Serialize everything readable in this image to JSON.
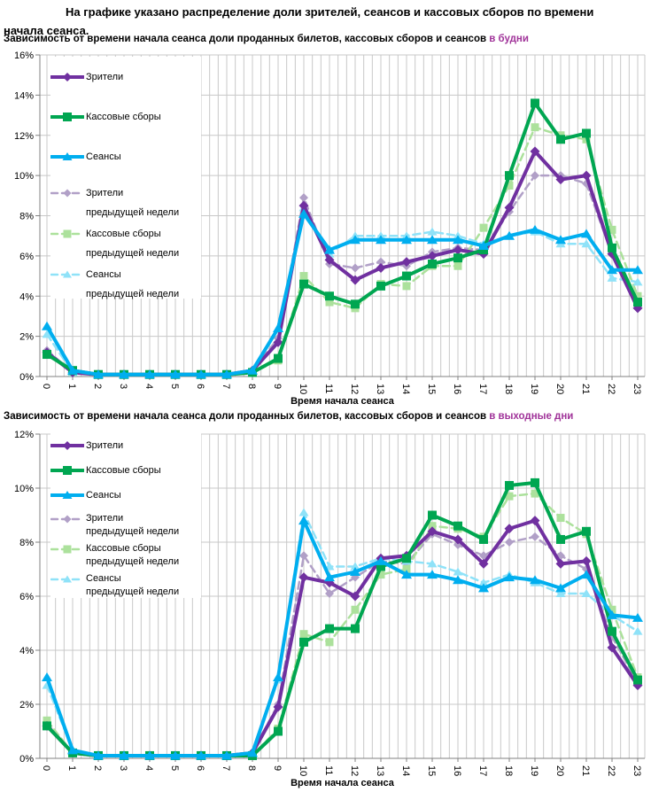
{
  "title": {
    "text": "На графике указано распределение доли зрителей, сеансов и кассовых сборов по времени начала сеанса."
  },
  "chart_data": [
    {
      "type": "line",
      "subtitle": "Зависимость от времени начала сеанса доли проданных билетов, кассовых сборов и сеансов",
      "subtitle_accent": "в будни",
      "accent_color": "#A03399",
      "xlabel": "Время начала сеанса",
      "x_labels": [
        "0",
        "1",
        "2",
        "3",
        "4",
        "5",
        "6",
        "7",
        "8",
        "9",
        "10",
        "11",
        "12",
        "13",
        "14",
        "15",
        "16",
        "17",
        "18",
        "19",
        "20",
        "21",
        "22",
        "23"
      ],
      "ylim": [
        0,
        16
      ],
      "ytick_step": 2,
      "ytick_labels": [
        "0%",
        "2%",
        "4%",
        "6%",
        "8%",
        "10%",
        "12%",
        "14%",
        "16%"
      ],
      "grid": {
        "horizontal_every_pct": 2,
        "vertical_every_hours": 0.3333,
        "color": "#C8C8C8"
      },
      "legend_position": "top-left",
      "series": [
        {
          "key": "viewers",
          "name_lines": [
            "Зрители"
          ],
          "color": "#7030A0",
          "marker": "diamond",
          "dashed": false,
          "values": [
            1.2,
            0.2,
            0.1,
            0.1,
            0.1,
            0.1,
            0.1,
            0.1,
            0.3,
            1.7,
            8.5,
            5.8,
            4.8,
            5.4,
            5.7,
            6.0,
            6.3,
            6.1,
            8.4,
            11.2,
            9.8,
            10.0,
            6.1,
            3.4
          ]
        },
        {
          "key": "boxoffice",
          "name_lines": [
            "Кассовые сборы"
          ],
          "color": "#00A651",
          "marker": "square",
          "dashed": false,
          "values": [
            1.1,
            0.3,
            0.1,
            0.1,
            0.1,
            0.1,
            0.1,
            0.1,
            0.2,
            0.9,
            4.6,
            4.0,
            3.6,
            4.5,
            5.0,
            5.6,
            5.9,
            6.3,
            10.0,
            13.6,
            11.8,
            12.1,
            6.4,
            3.7
          ]
        },
        {
          "key": "sessions",
          "name_lines": [
            "Сеансы"
          ],
          "color": "#00AEEF",
          "marker": "triangle",
          "dashed": false,
          "values": [
            2.5,
            0.3,
            0.1,
            0.1,
            0.1,
            0.1,
            0.1,
            0.1,
            0.3,
            2.4,
            8.1,
            6.3,
            6.8,
            6.8,
            6.8,
            6.8,
            6.8,
            6.5,
            7.0,
            7.3,
            6.8,
            7.1,
            5.3,
            5.3
          ]
        },
        {
          "key": "viewers_prev",
          "name_lines": [
            "Зрители",
            "предыдущей недели"
          ],
          "color": "#B1A0C7",
          "marker": "diamond",
          "dashed": true,
          "values": [
            1.3,
            0.2,
            0.1,
            0.1,
            0.1,
            0.1,
            0.1,
            0.1,
            0.3,
            1.9,
            8.9,
            5.6,
            5.4,
            5.7,
            5.5,
            6.2,
            6.4,
            6.3,
            8.2,
            10.0,
            10.0,
            9.6,
            6.1,
            3.5
          ]
        },
        {
          "key": "boxoffice_prev",
          "name_lines": [
            "Кассовые сборы",
            "предыдущей недели"
          ],
          "color": "#ACE19C",
          "marker": "square",
          "dashed": true,
          "values": [
            1.1,
            0.2,
            0.1,
            0.1,
            0.1,
            0.1,
            0.1,
            0.1,
            0.2,
            0.8,
            5.0,
            3.7,
            3.4,
            4.6,
            4.5,
            5.5,
            5.5,
            7.4,
            9.5,
            12.4,
            12.0,
            11.8,
            7.3,
            4.0
          ]
        },
        {
          "key": "sessions_prev",
          "name_lines": [
            "Сеансы",
            "предыдущей недели"
          ],
          "color": "#8FE2F8",
          "marker": "triangle",
          "dashed": true,
          "values": [
            2.1,
            0.2,
            0.1,
            0.1,
            0.1,
            0.1,
            0.1,
            0.1,
            0.3,
            2.4,
            8.4,
            6.1,
            7.0,
            7.0,
            7.0,
            7.2,
            7.0,
            6.6,
            7.0,
            7.2,
            6.6,
            6.6,
            4.9,
            4.7
          ]
        }
      ]
    },
    {
      "type": "line",
      "subtitle": "Зависимость от времени начала сеанса доли проданных билетов, кассовых сборов и сеансов",
      "subtitle_accent": "в выходные дни",
      "accent_color": "#A03399",
      "xlabel": "Время начала сеанса",
      "x_labels": [
        "0",
        "1",
        "2",
        "3",
        "4",
        "5",
        "6",
        "7",
        "8",
        "9",
        "10",
        "11",
        "12",
        "13",
        "14",
        "15",
        "16",
        "17",
        "18",
        "19",
        "20",
        "21",
        "22",
        "23"
      ],
      "ylim": [
        0,
        12
      ],
      "ytick_step": 2,
      "ytick_labels": [
        "0%",
        "2%",
        "4%",
        "6%",
        "8%",
        "10%",
        "12%"
      ],
      "grid": {
        "horizontal_every_pct": 2,
        "vertical_every_hours": 0.3333,
        "color": "#C8C8C8"
      },
      "legend_position": "top-left",
      "series": [
        {
          "key": "viewers",
          "name_lines": [
            "Зрители"
          ],
          "color": "#7030A0",
          "marker": "diamond",
          "dashed": false,
          "values": [
            1.2,
            0.2,
            0.1,
            0.1,
            0.1,
            0.1,
            0.1,
            0.1,
            0.2,
            1.9,
            6.7,
            6.5,
            6.0,
            7.4,
            7.5,
            8.4,
            8.1,
            7.2,
            8.5,
            8.8,
            7.2,
            7.3,
            4.1,
            2.7
          ]
        },
        {
          "key": "boxoffice",
          "name_lines": [
            "Кассовые сборы"
          ],
          "color": "#00A651",
          "marker": "square",
          "dashed": false,
          "values": [
            1.2,
            0.2,
            0.1,
            0.1,
            0.1,
            0.1,
            0.1,
            0.1,
            0.1,
            1.0,
            4.3,
            4.8,
            4.8,
            7.1,
            7.4,
            9.0,
            8.6,
            8.1,
            10.1,
            10.2,
            8.1,
            8.4,
            4.7,
            2.9
          ]
        },
        {
          "key": "sessions",
          "name_lines": [
            "Сеансы"
          ],
          "color": "#00AEEF",
          "marker": "triangle",
          "dashed": false,
          "values": [
            3.0,
            0.3,
            0.1,
            0.1,
            0.1,
            0.1,
            0.1,
            0.1,
            0.2,
            3.0,
            8.8,
            6.7,
            6.9,
            7.3,
            6.8,
            6.8,
            6.6,
            6.3,
            6.7,
            6.6,
            6.3,
            6.8,
            5.3,
            5.2
          ]
        },
        {
          "key": "viewers_prev",
          "name_lines": [
            "Зрители",
            "предыдущей недели"
          ],
          "color": "#B1A0C7",
          "marker": "diamond",
          "dashed": true,
          "values": [
            1.3,
            0.2,
            0.1,
            0.1,
            0.1,
            0.1,
            0.1,
            0.1,
            0.2,
            2.0,
            7.5,
            6.1,
            6.7,
            7.3,
            7.2,
            8.3,
            7.9,
            7.5,
            8.0,
            8.2,
            7.5,
            7.0,
            4.5,
            2.8
          ]
        },
        {
          "key": "boxoffice_prev",
          "name_lines": [
            "Кассовые сборы",
            "предыдущей недели"
          ],
          "color": "#ACE19C",
          "marker": "square",
          "dashed": true,
          "values": [
            1.4,
            0.2,
            0.1,
            0.1,
            0.1,
            0.1,
            0.1,
            0.1,
            0.1,
            1.1,
            4.6,
            4.3,
            5.5,
            6.8,
            7.0,
            8.6,
            8.5,
            8.2,
            9.7,
            9.8,
            8.9,
            8.3,
            5.5,
            3.0
          ]
        },
        {
          "key": "sessions_prev",
          "name_lines": [
            "Сеансы",
            "предыдущей недели"
          ],
          "color": "#8FE2F8",
          "marker": "triangle",
          "dashed": true,
          "values": [
            2.7,
            0.3,
            0.1,
            0.1,
            0.1,
            0.1,
            0.1,
            0.1,
            0.2,
            2.9,
            9.1,
            7.1,
            7.1,
            7.4,
            7.3,
            7.2,
            6.9,
            6.5,
            6.8,
            6.5,
            6.1,
            6.1,
            5.3,
            4.7
          ]
        }
      ]
    }
  ]
}
